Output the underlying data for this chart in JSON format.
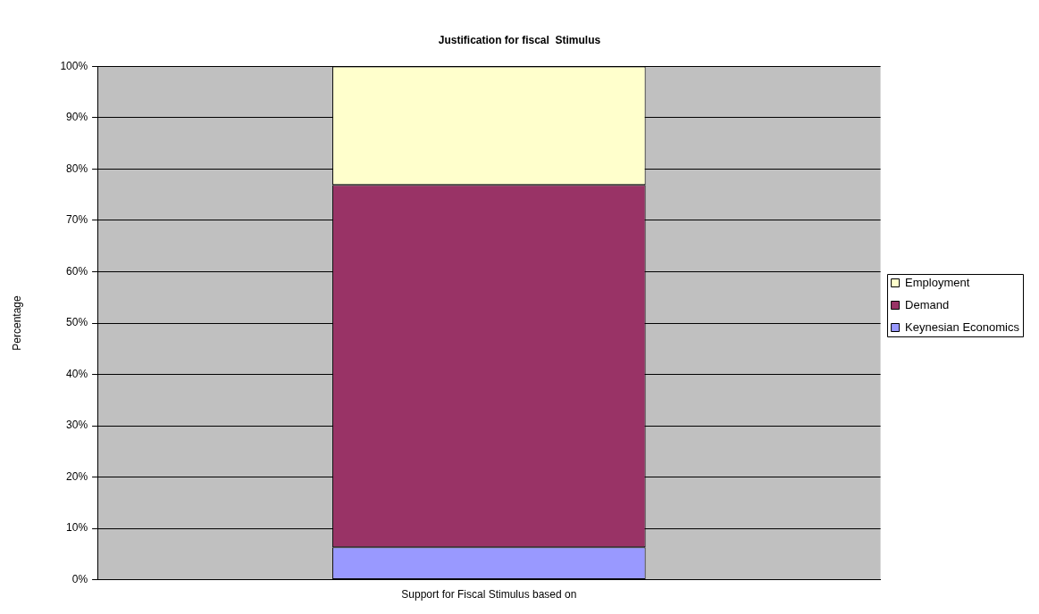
{
  "chart_data": {
    "type": "bar",
    "title": "Justification for fiscal  Stimulus",
    "ylabel": "Percentage",
    "categories": [
      "Support for Fiscal Stimulus based on"
    ],
    "series": [
      {
        "name": "Keynesian Economics",
        "color": "#9999ff",
        "values": [
          6.3
        ]
      },
      {
        "name": "Demand",
        "color": "#993366",
        "values": [
          70.6
        ]
      },
      {
        "name": "Employment",
        "color": "#ffffcc",
        "values": [
          23.1
        ]
      }
    ],
    "stacked": true,
    "ylim": [
      0,
      100
    ],
    "yticks": [
      {
        "value": 0,
        "label": "0%"
      },
      {
        "value": 10,
        "label": "10%"
      },
      {
        "value": 20,
        "label": "20%"
      },
      {
        "value": 30,
        "label": "30%"
      },
      {
        "value": 40,
        "label": "40%"
      },
      {
        "value": 50,
        "label": "50%"
      },
      {
        "value": 60,
        "label": "60%"
      },
      {
        "value": 70,
        "label": "70%"
      },
      {
        "value": 80,
        "label": "80%"
      },
      {
        "value": 90,
        "label": "90%"
      },
      {
        "value": 100,
        "label": "100%"
      }
    ],
    "grid": "y",
    "legend": "right"
  }
}
